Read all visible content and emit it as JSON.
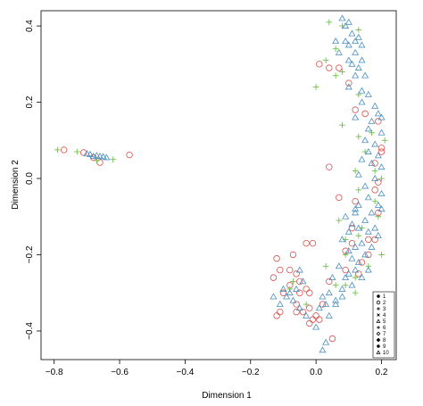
{
  "chart_data": {
    "type": "scatter",
    "title": "",
    "xlabel": "Dimension 1",
    "ylabel": "Dimension 2",
    "xlim": [
      -0.84,
      0.245
    ],
    "ylim": [
      -0.475,
      0.44
    ],
    "xticks": [
      -0.8,
      -0.6,
      -0.4,
      -0.2,
      0.0,
      0.2
    ],
    "xtick_labels": [
      "−0.8",
      "−0.6",
      "−0.4",
      "−0.2",
      "0.0",
      "0.2"
    ],
    "yticks": [
      -0.4,
      -0.2,
      0.0,
      0.2,
      0.4
    ],
    "ytick_labels": [
      "−0.4",
      "−0.2",
      "0.0",
      "0.2",
      "0.4"
    ],
    "grid": false,
    "legend_position": "bottom-right",
    "legend_entries": [
      "1",
      "2",
      "3",
      "4",
      "5",
      "6",
      "7",
      "8",
      "9",
      "10"
    ],
    "legend_symbols": [
      "filled-circle",
      "circle",
      "plus",
      "cross",
      "triangle",
      "plus",
      "diamond",
      "filled-diamond",
      "filled-circle",
      "triangle"
    ],
    "colors": {
      "series_2": "#d9534f",
      "series_3": "#6fbf4a",
      "series_10": "#4a8fc0"
    },
    "series": [
      {
        "legend_label": "2",
        "symbol": "circle",
        "color": "#d9534f",
        "points": [
          [
            -0.77,
            0.075
          ],
          [
            -0.71,
            0.068
          ],
          [
            -0.68,
            0.055
          ],
          [
            -0.66,
            0.042
          ],
          [
            -0.57,
            0.062
          ],
          [
            0.01,
            0.3
          ],
          [
            0.07,
            0.29
          ],
          [
            0.1,
            0.25
          ],
          [
            0.04,
            0.29
          ],
          [
            0.12,
            0.18
          ],
          [
            0.15,
            0.17
          ],
          [
            0.19,
            0.15
          ],
          [
            0.2,
            0.08
          ],
          [
            0.2,
            0.07
          ],
          [
            0.18,
            0.04
          ],
          [
            0.04,
            0.03
          ],
          [
            0.19,
            -0.01
          ],
          [
            0.18,
            -0.03
          ],
          [
            0.07,
            -0.05
          ],
          [
            0.12,
            -0.06
          ],
          [
            0.19,
            -0.09
          ],
          [
            0.11,
            -0.13
          ],
          [
            0.16,
            -0.16
          ],
          [
            0.18,
            -0.16
          ],
          [
            0.16,
            -0.2
          ],
          [
            0.13,
            -0.25
          ],
          [
            0.09,
            -0.24
          ],
          [
            0.04,
            -0.27
          ],
          [
            -0.01,
            -0.17
          ],
          [
            -0.03,
            -0.17
          ],
          [
            -0.07,
            -0.2
          ],
          [
            -0.12,
            -0.21
          ],
          [
            -0.11,
            -0.24
          ],
          [
            -0.13,
            -0.26
          ],
          [
            -0.08,
            -0.24
          ],
          [
            -0.06,
            -0.25
          ],
          [
            -0.05,
            -0.27
          ],
          [
            -0.08,
            -0.28
          ],
          [
            -0.1,
            -0.3
          ],
          [
            -0.05,
            -0.3
          ],
          [
            -0.03,
            -0.29
          ],
          [
            -0.06,
            -0.33
          ],
          [
            -0.04,
            -0.35
          ],
          [
            -0.06,
            -0.35
          ],
          [
            -0.11,
            -0.35
          ],
          [
            -0.12,
            -0.36
          ],
          [
            -0.02,
            -0.34
          ],
          [
            0.0,
            -0.36
          ],
          [
            0.02,
            -0.33
          ],
          [
            -0.01,
            -0.37
          ],
          [
            -0.02,
            -0.38
          ],
          [
            0.01,
            -0.37
          ],
          [
            0.05,
            -0.42
          ],
          [
            -0.02,
            -0.3
          ],
          [
            0.11,
            -0.17
          ],
          [
            0.09,
            -0.19
          ],
          [
            0.14,
            -0.22
          ]
        ]
      },
      {
        "legend_label": "3",
        "symbol": "plus",
        "color": "#6fbf4a",
        "points": [
          [
            -0.79,
            0.075
          ],
          [
            -0.73,
            0.07
          ],
          [
            -0.67,
            0.047
          ],
          [
            -0.62,
            0.05
          ],
          [
            0.04,
            0.41
          ],
          [
            0.08,
            0.4
          ],
          [
            0.13,
            0.39
          ],
          [
            0.06,
            0.34
          ],
          [
            0.03,
            0.31
          ],
          [
            0.0,
            0.24
          ],
          [
            0.08,
            0.28
          ],
          [
            0.06,
            0.27
          ],
          [
            0.13,
            0.22
          ],
          [
            0.08,
            0.14
          ],
          [
            0.17,
            0.12
          ],
          [
            0.21,
            0.1
          ],
          [
            0.13,
            0.11
          ],
          [
            0.15,
            0.07
          ],
          [
            0.12,
            0.02
          ],
          [
            0.18,
            0.02
          ],
          [
            0.2,
            0.0
          ],
          [
            0.13,
            -0.03
          ],
          [
            0.18,
            -0.06
          ],
          [
            0.19,
            -0.1
          ],
          [
            0.07,
            -0.11
          ],
          [
            0.14,
            -0.13
          ],
          [
            0.13,
            -0.15
          ],
          [
            0.09,
            -0.16
          ],
          [
            0.09,
            -0.2
          ],
          [
            0.16,
            -0.23
          ],
          [
            0.12,
            -0.26
          ],
          [
            0.09,
            -0.28
          ],
          [
            0.06,
            -0.28
          ],
          [
            0.12,
            -0.3
          ],
          [
            -0.07,
            -0.27
          ],
          [
            -0.08,
            -0.29
          ],
          [
            -0.03,
            -0.33
          ],
          [
            0.03,
            -0.23
          ],
          [
            0.2,
            -0.2
          ]
        ]
      },
      {
        "legend_label": "10",
        "symbol": "triangle",
        "color": "#4a8fc0",
        "points": [
          [
            -0.7,
            0.065
          ],
          [
            -0.69,
            0.063
          ],
          [
            -0.67,
            0.06
          ],
          [
            -0.66,
            0.058
          ],
          [
            -0.65,
            0.057
          ],
          [
            -0.68,
            0.058
          ],
          [
            -0.64,
            0.055
          ],
          [
            0.08,
            0.42
          ],
          [
            0.1,
            0.41
          ],
          [
            0.09,
            0.4
          ],
          [
            0.11,
            0.38
          ],
          [
            0.13,
            0.37
          ],
          [
            0.12,
            0.36
          ],
          [
            0.14,
            0.35
          ],
          [
            0.06,
            0.36
          ],
          [
            0.09,
            0.36
          ],
          [
            0.1,
            0.35
          ],
          [
            0.07,
            0.33
          ],
          [
            0.12,
            0.33
          ],
          [
            0.1,
            0.31
          ],
          [
            0.14,
            0.31
          ],
          [
            0.11,
            0.3
          ],
          [
            0.13,
            0.29
          ],
          [
            0.12,
            0.27
          ],
          [
            0.15,
            0.27
          ],
          [
            0.1,
            0.24
          ],
          [
            0.14,
            0.23
          ],
          [
            0.16,
            0.22
          ],
          [
            0.14,
            0.2
          ],
          [
            0.18,
            0.19
          ],
          [
            0.19,
            0.17
          ],
          [
            0.2,
            0.16
          ],
          [
            0.12,
            0.16
          ],
          [
            0.17,
            0.15
          ],
          [
            0.16,
            0.13
          ],
          [
            0.2,
            0.12
          ],
          [
            0.15,
            0.1
          ],
          [
            0.18,
            0.09
          ],
          [
            0.16,
            0.07
          ],
          [
            0.19,
            0.06
          ],
          [
            0.14,
            0.05
          ],
          [
            0.17,
            0.04
          ],
          [
            0.2,
            0.03
          ],
          [
            0.13,
            0.01
          ],
          [
            0.18,
            0.0
          ],
          [
            0.15,
            -0.02
          ],
          [
            0.2,
            -0.04
          ],
          [
            0.16,
            -0.05
          ],
          [
            0.13,
            -0.07
          ],
          [
            0.19,
            -0.07
          ],
          [
            0.17,
            -0.09
          ],
          [
            0.12,
            -0.09
          ],
          [
            0.2,
            -0.08
          ],
          [
            0.15,
            -0.11
          ],
          [
            0.18,
            -0.13
          ],
          [
            0.13,
            -0.13
          ],
          [
            0.16,
            -0.14
          ],
          [
            0.1,
            -0.14
          ],
          [
            0.19,
            -0.15
          ],
          [
            0.14,
            -0.17
          ],
          [
            0.12,
            -0.18
          ],
          [
            0.17,
            -0.18
          ],
          [
            0.15,
            -0.2
          ],
          [
            0.11,
            -0.21
          ],
          [
            0.13,
            -0.22
          ],
          [
            0.16,
            -0.24
          ],
          [
            0.12,
            -0.24
          ],
          [
            0.14,
            -0.26
          ],
          [
            0.1,
            -0.25
          ],
          [
            0.11,
            -0.28
          ],
          [
            0.08,
            -0.29
          ],
          [
            0.05,
            -0.26
          ],
          [
            0.04,
            -0.3
          ],
          [
            0.02,
            -0.31
          ],
          [
            0.06,
            -0.32
          ],
          [
            0.03,
            -0.33
          ],
          [
            0.01,
            -0.34
          ],
          [
            0.04,
            -0.36
          ],
          [
            0.0,
            -0.39
          ],
          [
            0.03,
            -0.43
          ],
          [
            0.02,
            -0.45
          ],
          [
            -0.05,
            -0.24
          ],
          [
            -0.04,
            -0.27
          ],
          [
            -0.06,
            -0.29
          ],
          [
            -0.08,
            -0.3
          ],
          [
            -0.1,
            -0.29
          ],
          [
            -0.09,
            -0.31
          ],
          [
            -0.13,
            -0.31
          ],
          [
            -0.07,
            -0.32
          ],
          [
            -0.11,
            -0.33
          ],
          [
            -0.05,
            -0.34
          ],
          [
            -0.03,
            -0.36
          ],
          [
            0.06,
            -0.33
          ],
          [
            0.08,
            -0.31
          ],
          [
            0.09,
            -0.26
          ],
          [
            0.07,
            -0.23
          ],
          [
            0.1,
            -0.19
          ],
          [
            0.08,
            -0.16
          ],
          [
            0.11,
            -0.12
          ],
          [
            0.09,
            -0.1
          ],
          [
            0.12,
            -0.08
          ]
        ]
      }
    ]
  }
}
